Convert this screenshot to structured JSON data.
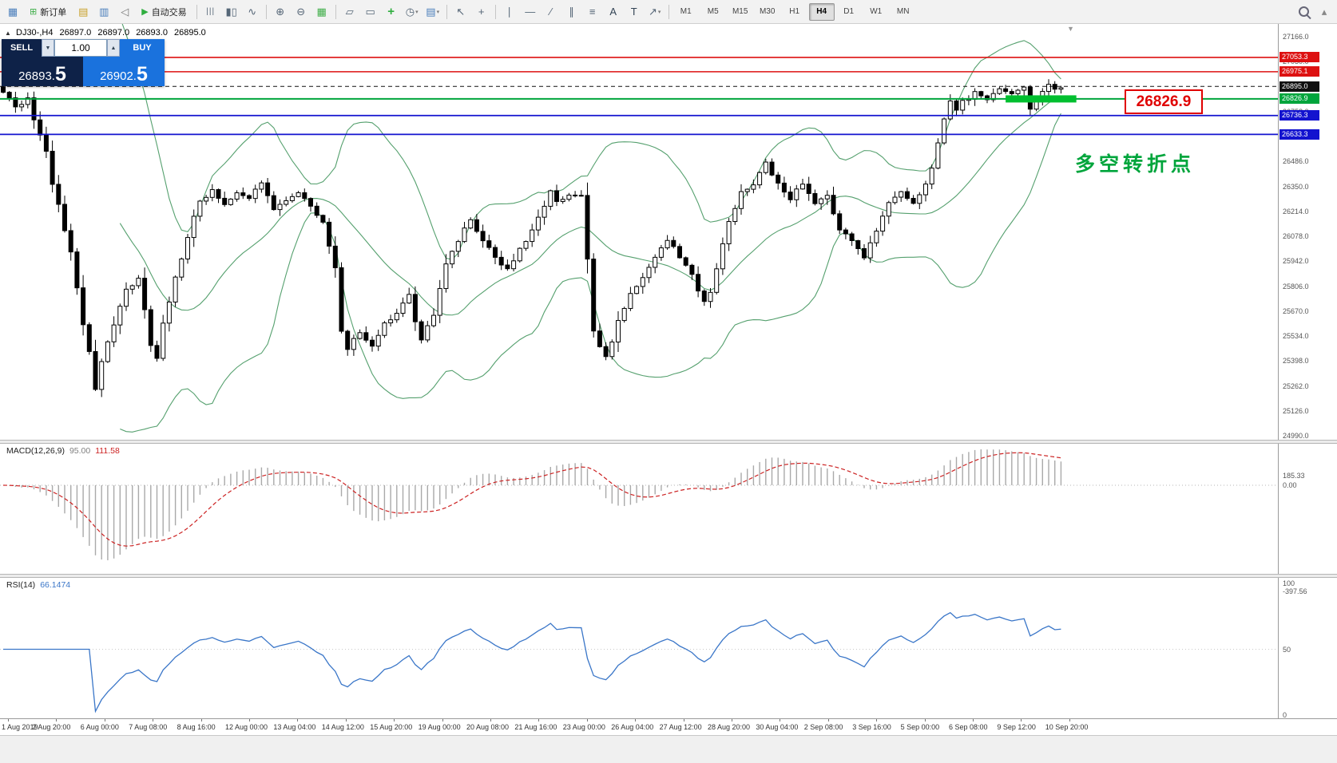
{
  "ui": {
    "panel_toggle": "▲",
    "shift_marker": "▼"
  },
  "toolbar": {
    "timeframes": [
      "M1",
      "M5",
      "M15",
      "M30",
      "H1",
      "H4",
      "D1",
      "W1",
      "MN"
    ],
    "active_timeframe": "H4",
    "items": [
      {
        "type": "icon",
        "name": "chart-window-icon",
        "glyph": "▦",
        "color": "#4a7ebb"
      },
      {
        "type": "button",
        "name": "new-order-button",
        "glyph": "⊞",
        "color": "#3fae49",
        "label": "新订单"
      },
      {
        "type": "icon",
        "name": "market-watch-icon",
        "glyph": "▤",
        "color": "#c8a028"
      },
      {
        "type": "icon",
        "name": "data-window-icon",
        "glyph": "▥",
        "color": "#4a7ebb"
      },
      {
        "type": "icon",
        "name": "sound-alert-icon",
        "glyph": "◁",
        "color": "#777777"
      },
      {
        "type": "button",
        "name": "auto-trading-button",
        "glyph": "▶",
        "color": "#2fae3f",
        "label": "自动交易"
      },
      {
        "type": "sep"
      },
      {
        "type": "icon",
        "name": "bar-chart-icon",
        "glyph": "|||",
        "color": "#556677"
      },
      {
        "type": "icon",
        "name": "candlestick-chart-icon",
        "glyph": "▮▯",
        "color": "#556677"
      },
      {
        "type": "icon",
        "name": "line-chart-icon",
        "glyph": "∿",
        "color": "#556677"
      },
      {
        "type": "sep"
      },
      {
        "type": "icon",
        "name": "zoom-in-icon",
        "glyph": "⊕",
        "color": "#556677"
      },
      {
        "type": "icon",
        "name": "zoom-out-icon",
        "glyph": "⊖",
        "color": "#556677"
      },
      {
        "type": "icon",
        "name": "tile-windows-icon",
        "glyph": "▦",
        "color": "#3fae49"
      },
      {
        "type": "sep"
      },
      {
        "type": "icon",
        "name": "cascade-windows-icon",
        "glyph": "▱",
        "color": "#556677"
      },
      {
        "type": "icon",
        "name": "arrange-windows-icon",
        "glyph": "▭",
        "color": "#556677"
      },
      {
        "type": "icon",
        "name": "indicators-icon",
        "glyph": "+",
        "color": "#2fae3f",
        "bold": true
      },
      {
        "type": "icon",
        "name": "periods-icon",
        "glyph": "◷",
        "color": "#556677",
        "dd": true
      },
      {
        "type": "icon",
        "name": "templates-icon",
        "glyph": "▤",
        "color": "#4a7ebb",
        "dd": true
      },
      {
        "type": "sep"
      },
      {
        "type": "icon",
        "name": "cursor-icon",
        "glyph": "↖",
        "color": "#556677"
      },
      {
        "type": "icon",
        "name": "crosshair-icon",
        "glyph": "+",
        "color": "#556677"
      },
      {
        "type": "sep"
      },
      {
        "type": "icon",
        "name": "vertical-line-icon",
        "glyph": "∣",
        "color": "#556677"
      },
      {
        "type": "icon",
        "name": "horizontal-line-icon",
        "glyph": "―",
        "color": "#556677"
      },
      {
        "type": "icon",
        "name": "trendline-icon",
        "glyph": "∕",
        "color": "#556677"
      },
      {
        "type": "icon",
        "name": "equidistant-channel-icon",
        "glyph": "∥",
        "color": "#556677"
      },
      {
        "type": "icon",
        "name": "fibonacci-icon",
        "glyph": "≡",
        "color": "#556677"
      },
      {
        "type": "icon",
        "name": "text-icon",
        "glyph": "A",
        "color": "#334455"
      },
      {
        "type": "icon",
        "name": "text-label-icon",
        "glyph": "T",
        "color": "#334455"
      },
      {
        "type": "icon",
        "name": "arrows-icon",
        "glyph": "↗",
        "color": "#556677",
        "dd": true
      },
      {
        "type": "sep"
      },
      {
        "type": "timeframes"
      },
      {
        "type": "spacer"
      },
      {
        "type": "search"
      },
      {
        "type": "icon",
        "name": "toolbar-collapse-icon",
        "glyph": "▴",
        "color": "#888888"
      }
    ]
  },
  "chart": {
    "info": {
      "symbol": "DJ30-,H4",
      "o": "26897.0",
      "h": "26897.0",
      "l": "26893.0",
      "c": "26895.0"
    },
    "price_ticks": [
      "27166.0",
      "27030.0",
      "26894.0",
      "26758.0",
      "26622.0",
      "26486.0",
      "26350.0",
      "26214.0",
      "26078.0",
      "25942.0",
      "25806.0",
      "25670.0",
      "25534.0",
      "25398.0",
      "25262.0",
      "25126.0",
      "24990.0"
    ],
    "levels": [
      {
        "label": "27053.3",
        "price": 27053.3,
        "color": "#dd1111",
        "style": "solid",
        "width": 1.6
      },
      {
        "label": "26975.1",
        "price": 26975.1,
        "color": "#dd1111",
        "style": "solid",
        "width": 1.6
      },
      {
        "label": "26895.0",
        "price": 26895.0,
        "color": "#111111",
        "style": "dash",
        "width": 1
      },
      {
        "label": "26826.9",
        "price": 26826.9,
        "color": "#00a53c",
        "style": "solid",
        "width": 2
      },
      {
        "label": "26736.3",
        "price": 26736.3,
        "color": "#1313cf",
        "style": "solid",
        "width": 1.8
      },
      {
        "label": "26633.3",
        "price": 26633.3,
        "color": "#1313cf",
        "style": "solid",
        "width": 1.8
      }
    ],
    "highlight": {
      "bar_start": 163,
      "bar_end": 174.5,
      "price": 26826.9,
      "thickness": 9,
      "color": "#00bf2f"
    },
    "callout_label": "26826.9",
    "annotation_text": "多空转折点",
    "colors": {
      "bollinger": "#55a06e",
      "signal": "#cc2222",
      "rsi": "#3a76c8",
      "level_red": "#dd1111",
      "level_blue": "#1313cf",
      "level_green": "#00a53c",
      "highlight": "#00bf2f",
      "buy": "#1a72dd",
      "sell": "#0e2248"
    }
  },
  "trade_panel": {
    "sell_label": "SELL",
    "buy_label": "BUY",
    "lot_value": "1.00",
    "sell_price": {
      "main": "26893.",
      "big": "5"
    },
    "buy_price": {
      "main": "26902.",
      "big": "5"
    }
  },
  "macd_panel": {
    "title": "MACD(12,26,9)",
    "main_value": "95.00",
    "signal_value": "111.58",
    "axis_labels": [
      "185.33",
      "0.00",
      "-397.56"
    ]
  },
  "rsi_panel": {
    "title": "RSI(14)",
    "value": "66.1474",
    "axis_labels": [
      "100",
      "50",
      "0"
    ]
  },
  "timeline": [
    "1 Aug 2019",
    "2 Aug 20:00",
    "6 Aug 00:00",
    "7 Aug 08:00",
    "8 Aug 16:00",
    "12 Aug 00:00",
    "13 Aug 04:00",
    "14 Aug 12:00",
    "15 Aug 20:00",
    "19 Aug 00:00",
    "20 Aug 08:00",
    "21 Aug 16:00",
    "23 Aug 00:00",
    "26 Aug 04:00",
    "27 Aug 12:00",
    "28 Aug 20:00",
    "30 Aug 04:00",
    "2 Sep 08:00",
    "3 Sep 16:00",
    "5 Sep 00:00",
    "6 Sep 08:00",
    "9 Sep 12:00",
    "10 Sep 20:00"
  ],
  "chart_data": {
    "type": "candlestick",
    "symbol": "DJ30-",
    "timeframe": "H4",
    "bars": 173,
    "ylim": [
      24990,
      27166
    ],
    "price_axis": {
      "top": 27166,
      "bottom": 24990
    },
    "indicators": {
      "bollinger_period": 20,
      "bollinger_dev": 2,
      "macd": [
        12,
        26,
        9
      ],
      "rsi_period": 14
    },
    "price_anchors": [
      [
        0,
        26870
      ],
      [
        2,
        26780
      ],
      [
        4,
        26820
      ],
      [
        5,
        26700
      ],
      [
        7,
        26550
      ],
      [
        8,
        26350
      ],
      [
        9,
        26250
      ],
      [
        10,
        26100
      ],
      [
        11,
        26000
      ],
      [
        12,
        25800
      ],
      [
        13,
        25600
      ],
      [
        14,
        25450
      ],
      [
        15,
        25250
      ],
      [
        16,
        25400
      ],
      [
        18,
        25600
      ],
      [
        20,
        25780
      ],
      [
        22,
        25850
      ],
      [
        24,
        25480
      ],
      [
        25,
        25420
      ],
      [
        26,
        25600
      ],
      [
        28,
        25850
      ],
      [
        30,
        26080
      ],
      [
        32,
        26280
      ],
      [
        34,
        26320
      ],
      [
        36,
        26260
      ],
      [
        38,
        26310
      ],
      [
        40,
        26290
      ],
      [
        42,
        26360
      ],
      [
        44,
        26220
      ],
      [
        46,
        26280
      ],
      [
        48,
        26310
      ],
      [
        50,
        26250
      ],
      [
        52,
        26150
      ],
      [
        54,
        25900
      ],
      [
        55,
        25550
      ],
      [
        56,
        25470
      ],
      [
        58,
        25560
      ],
      [
        60,
        25470
      ],
      [
        62,
        25600
      ],
      [
        64,
        25650
      ],
      [
        66,
        25760
      ],
      [
        67,
        25620
      ],
      [
        68,
        25520
      ],
      [
        70,
        25650
      ],
      [
        72,
        25940
      ],
      [
        74,
        26060
      ],
      [
        76,
        26160
      ],
      [
        78,
        26060
      ],
      [
        80,
        25960
      ],
      [
        82,
        25900
      ],
      [
        84,
        26010
      ],
      [
        86,
        26110
      ],
      [
        88,
        26230
      ],
      [
        89,
        26330
      ],
      [
        90,
        26260
      ],
      [
        92,
        26290
      ],
      [
        94,
        26310
      ],
      [
        95,
        25950
      ],
      [
        96,
        25560
      ],
      [
        97,
        25470
      ],
      [
        98,
        25410
      ],
      [
        100,
        25610
      ],
      [
        102,
        25760
      ],
      [
        104,
        25860
      ],
      [
        106,
        25960
      ],
      [
        108,
        26060
      ],
      [
        110,
        25970
      ],
      [
        112,
        25870
      ],
      [
        114,
        25710
      ],
      [
        115,
        25760
      ],
      [
        116,
        25910
      ],
      [
        118,
        26160
      ],
      [
        120,
        26310
      ],
      [
        122,
        26360
      ],
      [
        124,
        26480
      ],
      [
        125,
        26410
      ],
      [
        126,
        26360
      ],
      [
        128,
        26290
      ],
      [
        130,
        26360
      ],
      [
        132,
        26260
      ],
      [
        134,
        26310
      ],
      [
        136,
        26110
      ],
      [
        138,
        26060
      ],
      [
        140,
        25960
      ],
      [
        142,
        26110
      ],
      [
        144,
        26260
      ],
      [
        146,
        26310
      ],
      [
        148,
        26260
      ],
      [
        150,
        26360
      ],
      [
        151,
        26460
      ],
      [
        153,
        26710
      ],
      [
        154,
        26810
      ],
      [
        155,
        26760
      ],
      [
        156,
        26810
      ],
      [
        158,
        26860
      ],
      [
        160,
        26830
      ],
      [
        162,
        26880
      ],
      [
        164,
        26850
      ],
      [
        166,
        26890
      ],
      [
        167,
        26770
      ],
      [
        168,
        26810
      ],
      [
        169,
        26860
      ],
      [
        170,
        26900
      ],
      [
        171,
        26870
      ],
      [
        172,
        26895
      ]
    ]
  }
}
